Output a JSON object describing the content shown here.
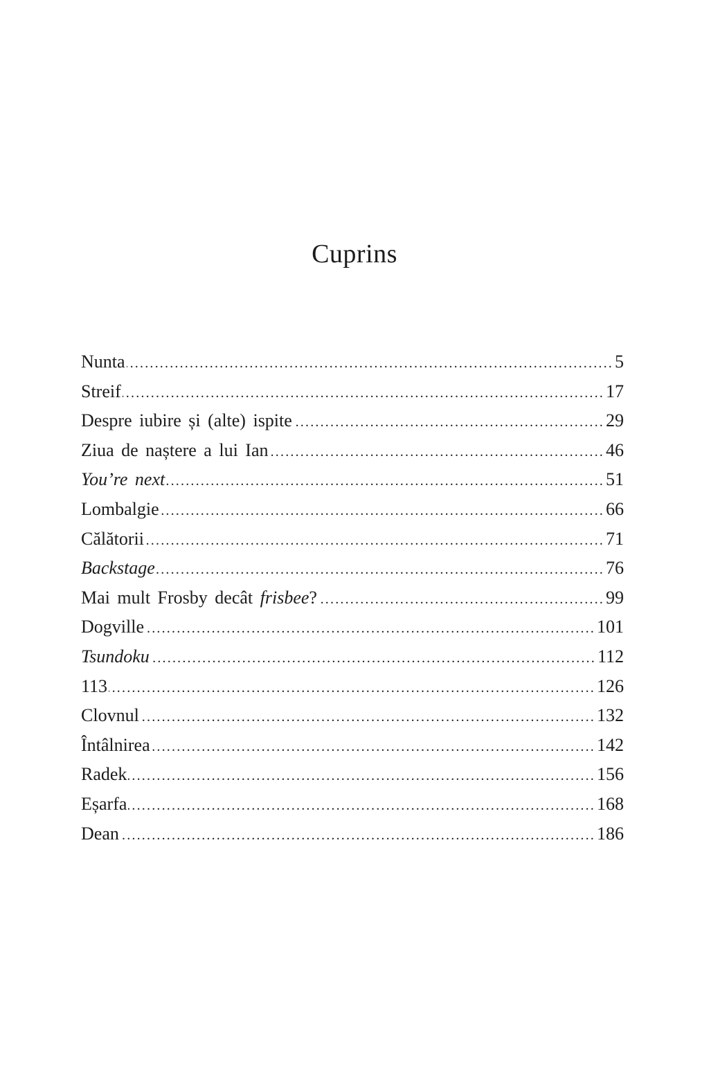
{
  "title": "Cuprins",
  "entries": [
    {
      "segments": [
        {
          "text": "Nunta",
          "italic": false
        }
      ],
      "page": "5"
    },
    {
      "segments": [
        {
          "text": "Streif",
          "italic": false
        }
      ],
      "page": "17"
    },
    {
      "segments": [
        {
          "text": "Despre iubire și (alte) ispite",
          "italic": false
        }
      ],
      "page": "29"
    },
    {
      "segments": [
        {
          "text": "Ziua de naștere a lui Ian",
          "italic": false
        }
      ],
      "page": "46"
    },
    {
      "segments": [
        {
          "text": "You’re next",
          "italic": true
        }
      ],
      "page": "51"
    },
    {
      "segments": [
        {
          "text": "Lombalgie",
          "italic": false
        }
      ],
      "page": "66"
    },
    {
      "segments": [
        {
          "text": "Călătorii",
          "italic": false
        }
      ],
      "page": "71"
    },
    {
      "segments": [
        {
          "text": "Backstage",
          "italic": true
        }
      ],
      "page": "76"
    },
    {
      "segments": [
        {
          "text": "Mai mult Frosby decât ",
          "italic": false
        },
        {
          "text": "frisbee",
          "italic": true
        },
        {
          "text": "?",
          "italic": false
        }
      ],
      "page": "99"
    },
    {
      "segments": [
        {
          "text": "Dogville",
          "italic": false
        }
      ],
      "page": "101"
    },
    {
      "segments": [
        {
          "text": "Tsundoku",
          "italic": true
        }
      ],
      "page": "112"
    },
    {
      "segments": [
        {
          "text": "113",
          "italic": false
        }
      ],
      "page": "126"
    },
    {
      "segments": [
        {
          "text": "Clovnul",
          "italic": false
        }
      ],
      "page": "132"
    },
    {
      "segments": [
        {
          "text": "Întâlnirea",
          "italic": false
        }
      ],
      "page": "142"
    },
    {
      "segments": [
        {
          "text": "Radek",
          "italic": false
        }
      ],
      "page": "156"
    },
    {
      "segments": [
        {
          "text": "Eșarfa",
          "italic": false
        }
      ],
      "page": "168"
    },
    {
      "segments": [
        {
          "text": "Dean",
          "italic": false
        }
      ],
      "page": "186"
    }
  ]
}
